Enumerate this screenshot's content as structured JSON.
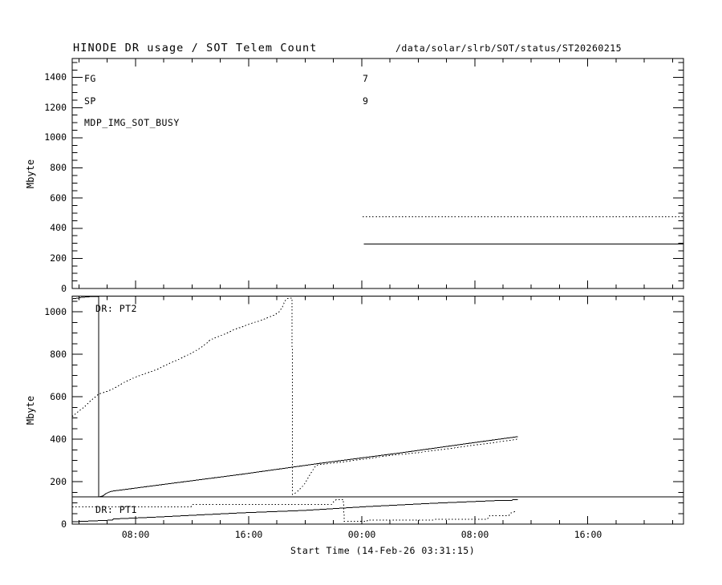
{
  "header": {
    "title": "HINODE DR usage / SOT Telem Count",
    "path": "/data/solar/slrb/SOT/status/ST20260215"
  },
  "panel1": {
    "ylabel": "Mbyte",
    "fg_label": "FG",
    "fg_value": "7",
    "sp_label": "SP",
    "sp_value": "9",
    "busy_label": "MDP_IMG_SOT_BUSY",
    "ytick_labels": [
      "0",
      "200",
      "400",
      "600",
      "800",
      "1000",
      "1200",
      "1400"
    ],
    "ytick_values": [
      0,
      200,
      400,
      600,
      800,
      1000,
      1200,
      1400
    ]
  },
  "panel2": {
    "ylabel": "Mbyte",
    "pt2_label": "DR: PT2",
    "pt1_label": "DR: PT1",
    "ytick_labels": [
      "0",
      "200",
      "400",
      "600",
      "800",
      "1000"
    ],
    "ytick_values": [
      0,
      200,
      400,
      600,
      800,
      1000
    ]
  },
  "xaxis": {
    "title": "Start Time (14-Feb-26 03:31:15)",
    "tick_labels": [
      "08:00",
      "16:00",
      "00:00",
      "08:00",
      "16:00"
    ],
    "tick_values": [
      8,
      16,
      24,
      32,
      40
    ],
    "minor_step": 2,
    "min": 3.521,
    "max": 46.77
  },
  "chart_data": {
    "type": "line",
    "title": "HINODE DR usage / SOT Telem Count",
    "x_unit": "hours since 14-Feb-26 00:00",
    "xlim": [
      3.521,
      46.77
    ],
    "panels": [
      {
        "name": "telem-count",
        "ylabel": "Mbyte",
        "ylim": [
          0,
          1526
        ],
        "annotations": [
          "FG = 7",
          "SP = 9",
          "MDP_IMG_SOT_BUSY"
        ]
      },
      {
        "name": "dr-usage",
        "ylabel": "Mbyte",
        "ylim": [
          0,
          1074
        ],
        "annotations": [
          "DR: PT2",
          "DR: PT1"
        ]
      }
    ],
    "series": [
      {
        "name": "telem-dotted",
        "panel": 0,
        "style": "dotted",
        "points": [
          [
            24.06,
            475
          ],
          [
            46.77,
            475
          ]
        ]
      },
      {
        "name": "telem-solid",
        "panel": 0,
        "style": "solid",
        "points": [
          [
            24.14,
            295
          ],
          [
            46.77,
            295
          ]
        ]
      },
      {
        "name": "pt2-dotted",
        "panel": 1,
        "style": "dotted",
        "points": [
          [
            3.52,
            506
          ],
          [
            3.92,
            528
          ],
          [
            4.37,
            551
          ],
          [
            4.77,
            578
          ],
          [
            5.11,
            596
          ],
          [
            5.39,
            612
          ],
          [
            6.07,
            627
          ],
          [
            6.64,
            645
          ],
          [
            7.21,
            668
          ],
          [
            7.95,
            691
          ],
          [
            8.74,
            710
          ],
          [
            9.53,
            729
          ],
          [
            10.33,
            755
          ],
          [
            11.12,
            778
          ],
          [
            11.92,
            804
          ],
          [
            12.6,
            830
          ],
          [
            13.05,
            853
          ],
          [
            13.28,
            868
          ],
          [
            13.85,
            883
          ],
          [
            14.42,
            898
          ],
          [
            14.99,
            917
          ],
          [
            15.55,
            929
          ],
          [
            16.12,
            944
          ],
          [
            16.69,
            955
          ],
          [
            17.26,
            970
          ],
          [
            17.83,
            985
          ],
          [
            18.17,
            1000
          ],
          [
            18.39,
            1023
          ],
          [
            18.56,
            1049
          ],
          [
            18.68,
            1061
          ],
          [
            19.08,
            1065
          ],
          [
            19.11,
            140
          ],
          [
            19.31,
            147
          ],
          [
            19.54,
            159
          ],
          [
            19.76,
            174
          ],
          [
            19.99,
            193
          ],
          [
            20.22,
            219
          ],
          [
            20.45,
            245
          ],
          [
            20.67,
            268
          ],
          [
            20.9,
            279
          ],
          [
            22.83,
            294
          ],
          [
            24.53,
            310
          ],
          [
            26.24,
            325
          ],
          [
            27.94,
            336
          ],
          [
            29.64,
            351
          ],
          [
            31.35,
            366
          ],
          [
            33.05,
            381
          ],
          [
            35.04,
            400
          ]
        ]
      },
      {
        "name": "pt2-solid",
        "panel": 1,
        "style": "solid",
        "points": [
          [
            3.52,
            1061
          ],
          [
            3.86,
            1064
          ],
          [
            4.2,
            1068
          ],
          [
            4.54,
            1070
          ],
          [
            4.88,
            1072
          ],
          [
            5.39,
            1072
          ],
          [
            5.39,
            128
          ],
          [
            5.67,
            132
          ],
          [
            5.9,
            143
          ],
          [
            6.13,
            151
          ],
          [
            6.35,
            155
          ],
          [
            9.76,
            185
          ],
          [
            15.44,
            234
          ],
          [
            21.12,
            287
          ],
          [
            26.81,
            336
          ],
          [
            32.49,
            389
          ],
          [
            35.04,
            412
          ]
        ]
      },
      {
        "name": "pt1-capacity-line",
        "panel": 1,
        "style": "solid",
        "points": [
          [
            3.521,
            128
          ],
          [
            46.77,
            128
          ]
        ]
      },
      {
        "name": "pt1-dotted",
        "panel": 1,
        "style": "dotted",
        "points": [
          [
            3.52,
            81
          ],
          [
            11.92,
            81
          ],
          [
            12.03,
            92
          ],
          [
            21.86,
            92
          ],
          [
            22.03,
            106
          ],
          [
            22.2,
            115
          ],
          [
            22.71,
            115
          ],
          [
            22.77,
            13
          ],
          [
            24.36,
            13
          ],
          [
            24.42,
            19
          ],
          [
            29.08,
            19
          ],
          [
            29.19,
            22
          ],
          [
            32.88,
            22
          ],
          [
            33.05,
            40
          ],
          [
            34.41,
            40
          ],
          [
            34.58,
            53
          ],
          [
            34.75,
            57
          ],
          [
            34.92,
            60
          ]
        ]
      },
      {
        "name": "pt1-solid",
        "panel": 1,
        "style": "solid",
        "points": [
          [
            3.52,
            11
          ],
          [
            6.35,
            19
          ],
          [
            6.45,
            24
          ],
          [
            9.76,
            34
          ],
          [
            15.44,
            53
          ],
          [
            19.87,
            64
          ],
          [
            24.53,
            83
          ],
          [
            29.08,
            98
          ],
          [
            33.62,
            111
          ],
          [
            34.6,
            111
          ],
          [
            34.7,
            115
          ],
          [
            35.04,
            115
          ]
        ]
      }
    ]
  }
}
